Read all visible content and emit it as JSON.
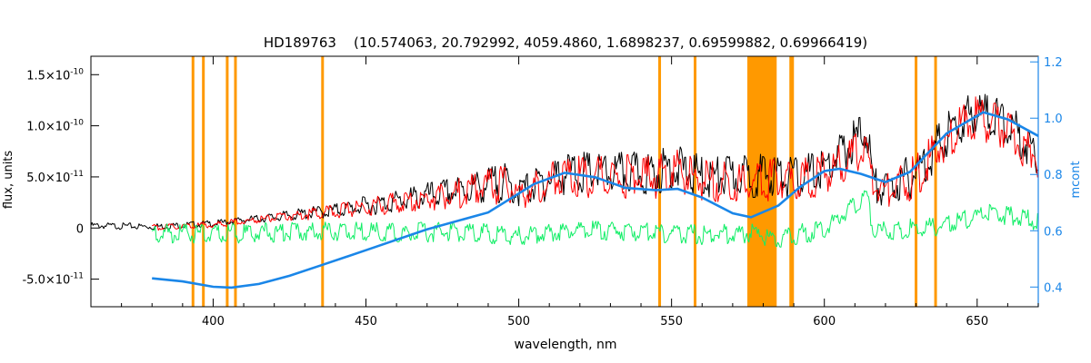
{
  "chart_data": {
    "type": "line",
    "title": "HD189763    (10.574063, 20.792992, 4059.4860, 1.6898237, 0.69599882, 0.69966419)",
    "xlabel": "wavelength, nm",
    "ylabel": "flux, units",
    "y2label": "mcont",
    "xlim": [
      360,
      670
    ],
    "ylim": [
      -7.7e-11,
      1.68e-10
    ],
    "y2lim": [
      0.33,
      1.22
    ],
    "x_ticks": [
      400,
      450,
      500,
      550,
      600,
      650
    ],
    "x_tick_labels": [
      "400",
      "450",
      "500",
      "550",
      "600",
      "650"
    ],
    "y_ticks": [
      -5e-11,
      0,
      5e-11,
      1e-10,
      1.5e-10
    ],
    "y_tick_labels": [
      {
        "m": "-5.0×10",
        "e": "-11"
      },
      {
        "m": "0",
        "e": ""
      },
      {
        "m": "5.0×10",
        "e": "-11"
      },
      {
        "m": "1.0×10",
        "e": "-10"
      },
      {
        "m": "1.5×10",
        "e": "-10"
      }
    ],
    "y2_ticks": [
      0.4,
      0.6,
      0.8,
      1.0,
      1.2
    ],
    "y2_tick_labels": [
      "0.4",
      "0.6",
      "0.8",
      "1.0",
      "1.2"
    ],
    "masked_lines": [
      393.4,
      396.8,
      404.6,
      407.3,
      435.8,
      546.1,
      557.7,
      589.0,
      589.6,
      630.0,
      636.4
    ],
    "masked_bands": [
      [
        574.8,
        584.4
      ]
    ],
    "series": [
      {
        "color": "#000000",
        "x": [
          360,
          380,
          400,
          420,
          440,
          460,
          480,
          495,
          500,
          515,
          530,
          545,
          550,
          560,
          575,
          585,
          590,
          600,
          614,
          616,
          620,
          630,
          640,
          650,
          660,
          670
        ],
        "values": [
          4e-12,
          3e-12,
          6e-12,
          1.3e-11,
          2.1e-11,
          3.2e-11,
          4.4e-11,
          5.5e-11,
          4.3e-11,
          6.5e-11,
          6.4e-11,
          6.4e-11,
          7.2e-11,
          6e-11,
          6.2e-11,
          6.3e-11,
          5.9e-11,
          6.8e-11,
          1.08e-10,
          5.2e-11,
          4.6e-11,
          6.5e-11,
          1.02e-10,
          1.27e-10,
          1.12e-10,
          8.3e-11
        ]
      },
      {
        "color": "#ff0000",
        "x": [
          380,
          400,
          420,
          440,
          460,
          480,
          495,
          500,
          515,
          530,
          545,
          550,
          560,
          575,
          585,
          590,
          600,
          614,
          616,
          620,
          630,
          640,
          650,
          660,
          670
        ],
        "values": [
          2e-12,
          5e-12,
          1.2e-11,
          2e-11,
          3e-11,
          4.2e-11,
          5.2e-11,
          4e-11,
          6.2e-11,
          6.1e-11,
          6.1e-11,
          6.9e-11,
          5.8e-11,
          5.2e-11,
          6e-11,
          5.6e-11,
          6.5e-11,
          8.8e-11,
          5e-11,
          4.4e-11,
          6.2e-11,
          9.8e-11,
          1.2e-10,
          1.06e-10,
          7.9e-11
        ]
      },
      {
        "color": "#11ee66",
        "x": [
          380,
          400,
          420,
          440,
          460,
          480,
          500,
          520,
          540,
          560,
          575,
          585,
          600,
          614,
          616,
          640,
          655,
          670
        ],
        "values": [
          0,
          -1e-12,
          1e-12,
          2e-12,
          0,
          1.5e-12,
          -3e-12,
          3e-12,
          2e-12,
          -2e-12,
          0,
          -5e-12,
          4e-12,
          3.8e-11,
          1e-12,
          8e-12,
          2e-11,
          1.2e-11
        ]
      },
      {
        "color": "#1a86e8",
        "axis": "right",
        "x": [
          380,
          390,
          400,
          406,
          415,
          425,
          435,
          450,
          470,
          490,
          505,
          515,
          525,
          535,
          545,
          552,
          560,
          570,
          576,
          585,
          592,
          600,
          605,
          612,
          620,
          628,
          640,
          652,
          660,
          670
        ],
        "values": [
          0.431,
          0.42,
          0.401,
          0.398,
          0.411,
          0.44,
          0.476,
          0.531,
          0.605,
          0.665,
          0.766,
          0.806,
          0.79,
          0.752,
          0.744,
          0.749,
          0.718,
          0.662,
          0.648,
          0.69,
          0.755,
          0.812,
          0.82,
          0.802,
          0.773,
          0.809,
          0.946,
          1.021,
          0.996,
          0.937
        ]
      }
    ]
  }
}
